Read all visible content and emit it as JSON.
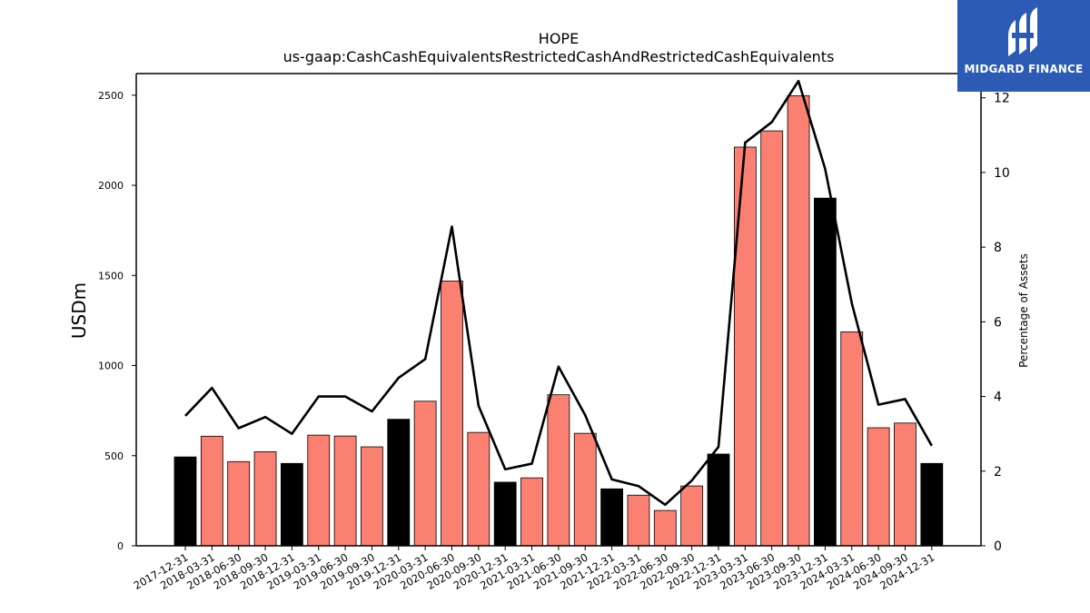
{
  "chart_data": {
    "type": "bar",
    "title": "HOPE",
    "subtitle": "us-gaap:CashCashEquivalentsRestrictedCashAndRestrictedCashEquivalents",
    "ylabel": "USDm",
    "y2label": "Percentage of Assets",
    "ylim": [
      0,
      2620
    ],
    "y2lim": [
      0,
      12.65
    ],
    "yticks": [
      0,
      500,
      1000,
      1500,
      2000,
      2500
    ],
    "y2ticks": [
      0,
      2,
      4,
      6,
      8,
      10,
      12
    ],
    "categories": [
      "2017-12-31",
      "2018-03-31",
      "2018-06-30",
      "2018-09-30",
      "2018-12-31",
      "2019-03-31",
      "2019-06-30",
      "2019-09-30",
      "2019-12-31",
      "2020-03-31",
      "2020-06-30",
      "2020-09-30",
      "2020-12-31",
      "2021-03-31",
      "2021-06-30",
      "2021-09-30",
      "2021-12-31",
      "2022-03-31",
      "2022-06-30",
      "2022-09-30",
      "2022-12-31",
      "2023-03-31",
      "2023-06-30",
      "2023-09-30",
      "2023-12-31",
      "2024-03-31",
      "2024-06-30",
      "2024-09-30",
      "2024-12-31"
    ],
    "series": [
      {
        "type": "bar",
        "values": [
          493,
          608,
          467,
          522,
          457,
          614,
          609,
          549,
          702,
          802,
          1469,
          629,
          353,
          377,
          838,
          624,
          316,
          281,
          196,
          332,
          509,
          2212,
          2302,
          2497,
          1929,
          1187,
          655,
          681,
          457
        ]
      },
      {
        "type": "line",
        "values": [
          3.48,
          4.23,
          3.15,
          3.45,
          3.0,
          4.0,
          4.0,
          3.6,
          4.5,
          5.0,
          8.55,
          3.75,
          2.05,
          2.2,
          4.8,
          3.5,
          1.78,
          1.6,
          1.1,
          1.75,
          2.65,
          10.8,
          11.35,
          12.45,
          10.1,
          6.5,
          3.78,
          3.93,
          2.68
        ]
      }
    ],
    "bar_colors": {
      "year_end": "#000000",
      "quarter": "#fa8072"
    },
    "line_color": "#000000",
    "grid": false,
    "legend": "none"
  },
  "logo": {
    "text": "MIDGARD FINANCE",
    "color": "#2c5bb5"
  }
}
